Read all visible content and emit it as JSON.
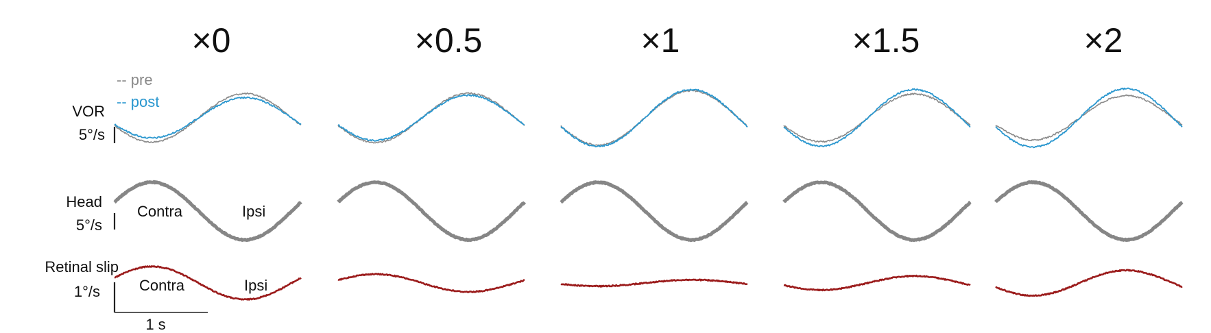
{
  "chart_data": {
    "type": "line",
    "conditions": [
      "×0",
      "×0.5",
      "×1",
      "×1.5",
      "×2"
    ],
    "legend": {
      "pre": "-- pre",
      "post": "-- post",
      "placement": "top-left"
    },
    "rows": {
      "vor": {
        "label": "VOR",
        "scale": "5°/s"
      },
      "head": {
        "label": "Head",
        "scale": "5°/s"
      },
      "slip": {
        "label": "Retinal slip",
        "scale": "1°/s"
      }
    },
    "annotations": {
      "contra": "Contra",
      "ipsi": "Ipsi"
    },
    "time_scale": "1 s",
    "colors": {
      "pre": "#8a8a8a",
      "post": "#2a97cf",
      "head": "#868686",
      "slip": "#9b1b1b",
      "axis": "#222222"
    },
    "series": {
      "vor_pre_amplitude": [
        5.9,
        6.0,
        6.6,
        5.8,
        5.4
      ],
      "vor_post_amplitude": [
        4.9,
        5.5,
        6.9,
        6.9,
        7.1
      ],
      "head_amplitude": [
        7.0,
        7.0,
        7.0,
        7.0,
        7.0
      ],
      "retinal_slip_amplitude": [
        1.3,
        0.7,
        0.25,
        0.55,
        1.0
      ],
      "retinal_slip_sign": [
        1,
        1,
        -1,
        -1,
        -1
      ]
    }
  }
}
